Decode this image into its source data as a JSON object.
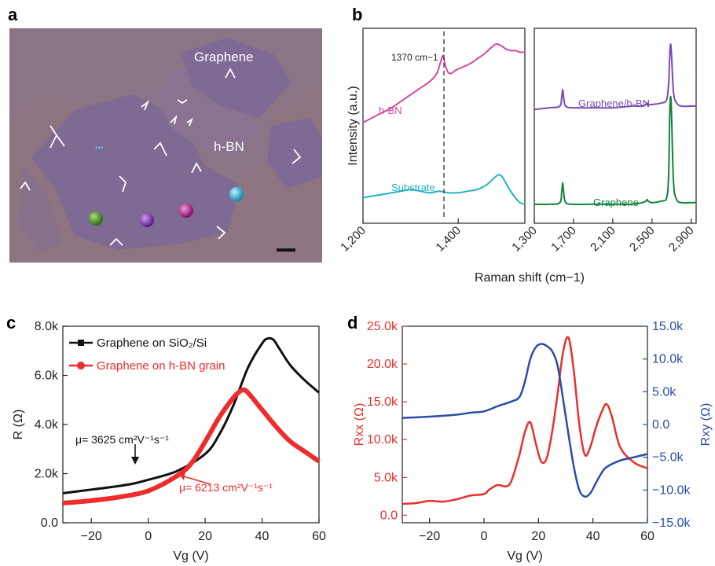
{
  "panels": {
    "a": {
      "letter": "a",
      "label_graphene": "Graphene",
      "label_hbn": "h-BN",
      "colors": {
        "background": "#8e7480",
        "domain": "#7a6a8c",
        "spot_green": "#4a8a2a",
        "spot_purple": "#8a3ab8",
        "spot_magenta": "#c0259a",
        "spot_cyan": "#2ab5d8"
      }
    },
    "b": {
      "letter": "b",
      "ylabel": "Intensity (a.u.)",
      "xlabel": "Raman shift (cm−1)",
      "annotation": "1370 cm−1",
      "left": {
        "ticks": [
          "1,200",
          "1,400"
        ],
        "series": [
          {
            "name": "h-BN",
            "color": "#d9489e"
          },
          {
            "name": "Substrate",
            "color": "#21b3c4"
          }
        ]
      },
      "right": {
        "ticks": [
          "1,300",
          "1,700",
          "2,100",
          "2,500",
          "2,900"
        ],
        "series": [
          {
            "name": "Graphene/h-BN",
            "color": "#7b4ab0"
          },
          {
            "name": "Graphene",
            "color": "#13833d"
          }
        ]
      }
    },
    "c": {
      "letter": "c",
      "mobility_black": "μ= 3625 cm²V⁻¹s⁻¹",
      "mobility_red": "μ= 6213 cm²V⁻¹s⁻¹"
    },
    "d": {
      "letter": "d"
    }
  },
  "chart_data": [
    {
      "panel": "b-left",
      "type": "line",
      "xlabel": "Raman shift (cm−1)",
      "ylabel": "Intensity (a.u.)",
      "xlim": [
        1200,
        1540
      ],
      "xticks": [
        1200,
        1400
      ],
      "vline": 1370,
      "series": [
        {
          "name": "h-BN",
          "color": "#d9489e",
          "x": [
            1200,
            1220,
            1240,
            1260,
            1280,
            1300,
            1320,
            1340,
            1355,
            1362,
            1368,
            1372,
            1378,
            1385,
            1395,
            1410,
            1425,
            1440,
            1455,
            1470,
            1480,
            1490,
            1500,
            1510,
            1520,
            1530,
            1540
          ],
          "y": [
            0.52,
            0.55,
            0.58,
            0.61,
            0.65,
            0.69,
            0.73,
            0.77,
            0.82,
            0.88,
            0.93,
            0.88,
            0.83,
            0.82,
            0.84,
            0.86,
            0.88,
            0.91,
            0.94,
            0.98,
            1.0,
            0.99,
            0.97,
            0.96,
            0.96,
            0.95,
            0.95
          ]
        },
        {
          "name": "Substrate",
          "color": "#21b3c4",
          "x": [
            1200,
            1220,
            1240,
            1260,
            1280,
            1300,
            1320,
            1340,
            1360,
            1380,
            1400,
            1420,
            1440,
            1460,
            1475,
            1485,
            1492,
            1500,
            1510,
            1520,
            1530,
            1540
          ],
          "y": [
            0.06,
            0.07,
            0.08,
            0.09,
            0.1,
            0.11,
            0.1,
            0.09,
            0.1,
            0.09,
            0.09,
            0.1,
            0.11,
            0.14,
            0.18,
            0.2,
            0.19,
            0.15,
            0.1,
            0.06,
            0.03,
            0.02
          ]
        }
      ]
    },
    {
      "panel": "b-right",
      "type": "line",
      "xlim": [
        1300,
        2950
      ],
      "xticks": [
        1300,
        1700,
        2100,
        2500,
        2900
      ],
      "series": [
        {
          "name": "Graphene/h-BN",
          "color": "#7b4ab0",
          "x": [
            1300,
            1450,
            1560,
            1580,
            1590,
            1600,
            1620,
            1700,
            1900,
            2100,
            2300,
            2400,
            2440,
            2450,
            2460,
            2500,
            2600,
            2650,
            2670,
            2680,
            2690,
            2700,
            2720,
            2750,
            2800,
            2900,
            2950
          ],
          "y": [
            0.6,
            0.61,
            0.62,
            0.68,
            0.72,
            0.67,
            0.62,
            0.61,
            0.61,
            0.61,
            0.62,
            0.62,
            0.63,
            0.64,
            0.63,
            0.63,
            0.64,
            0.66,
            0.76,
            0.92,
            1.0,
            0.92,
            0.7,
            0.64,
            0.62,
            0.62,
            0.62
          ]
        },
        {
          "name": "Graphene",
          "color": "#13833d",
          "x": [
            1300,
            1450,
            1560,
            1580,
            1590,
            1600,
            1620,
            1700,
            1900,
            2100,
            2300,
            2400,
            2440,
            2450,
            2460,
            2500,
            2600,
            2650,
            2670,
            2680,
            2690,
            2700,
            2720,
            2750,
            2800,
            2900,
            2950
          ],
          "y": [
            0.02,
            0.02,
            0.03,
            0.1,
            0.15,
            0.09,
            0.03,
            0.02,
            0.02,
            0.02,
            0.02,
            0.03,
            0.04,
            0.05,
            0.04,
            0.03,
            0.04,
            0.06,
            0.2,
            0.55,
            0.68,
            0.55,
            0.15,
            0.05,
            0.03,
            0.03,
            0.03
          ]
        }
      ]
    },
    {
      "panel": "c",
      "type": "line",
      "xlabel": "Vg (V)",
      "ylabel": "R (Ω)",
      "xlim": [
        -30,
        60
      ],
      "ylim": [
        0,
        8000
      ],
      "xticks": [
        -20,
        0,
        20,
        40,
        60
      ],
      "yticks": [
        0,
        2000,
        4000,
        6000,
        8000
      ],
      "yticklabels": [
        "0.0",
        "2.0k",
        "4.0k",
        "6.0k",
        "8.0k"
      ],
      "series": [
        {
          "name": "Graphene on SiO₂/Si",
          "color": "#111111",
          "x": [
            -30,
            -20,
            -10,
            -5,
            0,
            10,
            20,
            25,
            30,
            35,
            40,
            42,
            44,
            46,
            50,
            55,
            60
          ],
          "y": [
            1200,
            1350,
            1500,
            1600,
            1750,
            2100,
            2800,
            3600,
            4800,
            6300,
            7300,
            7500,
            7450,
            7100,
            6400,
            5800,
            5300
          ]
        },
        {
          "name": "Graphene on h-BN grain",
          "color": "#ee2c2c",
          "x": [
            -30,
            -20,
            -10,
            0,
            10,
            15,
            20,
            25,
            30,
            33,
            35,
            40,
            45,
            50,
            55,
            60
          ],
          "y": [
            800,
            900,
            1050,
            1300,
            1900,
            2400,
            3300,
            4300,
            5100,
            5400,
            5300,
            4600,
            3900,
            3300,
            2900,
            2500
          ]
        }
      ]
    },
    {
      "panel": "d",
      "type": "line",
      "xlabel": "Vg (V)",
      "ylabel": "Rxx (Ω)",
      "ylabel_right": "Rxy (Ω)",
      "xlim": [
        -30,
        60
      ],
      "ylim": [
        -1000,
        25000
      ],
      "ylim_right": [
        -15000,
        15000
      ],
      "xticks": [
        -20,
        0,
        20,
        40,
        60
      ],
      "yticks": [
        0,
        5000,
        10000,
        15000,
        20000,
        25000
      ],
      "yticklabels": [
        "0.0",
        "5.0k",
        "10.0k",
        "15.0k",
        "20.0k",
        "25.0k"
      ],
      "yticks_right": [
        -15000,
        -10000,
        -5000,
        0,
        5000,
        10000,
        15000
      ],
      "yticklabels_right": [
        "−15.0k",
        "−10.0k",
        "−5.0k",
        "0.0",
        "5.0k",
        "10.0k",
        "15.0k"
      ],
      "series": [
        {
          "name": "Rxx",
          "axis": "left",
          "color": "#e8302e",
          "x": [
            -30,
            -25,
            -20,
            -15,
            -10,
            -5,
            0,
            2,
            5,
            8,
            10,
            13,
            15,
            17,
            19,
            21,
            23,
            25,
            27,
            29,
            31,
            33,
            35,
            37,
            39,
            41,
            43,
            45,
            47,
            50,
            55,
            60
          ],
          "y": [
            1500,
            1600,
            1900,
            1800,
            2100,
            2600,
            2800,
            3400,
            4000,
            3800,
            4500,
            8000,
            11000,
            12300,
            9500,
            7100,
            7500,
            11000,
            16000,
            21500,
            23500,
            19000,
            12000,
            8000,
            9000,
            11500,
            13500,
            14700,
            13000,
            9000,
            7000,
            6200
          ]
        },
        {
          "name": "Rxy",
          "axis": "right",
          "color": "#2a4da8",
          "x": [
            -30,
            -20,
            -10,
            -5,
            0,
            5,
            10,
            13,
            15,
            17,
            19,
            21,
            23,
            25,
            27,
            29,
            31,
            33,
            35,
            37,
            39,
            41,
            43,
            45,
            50,
            55,
            60
          ],
          "y": [
            1000,
            1200,
            1500,
            1800,
            2000,
            2800,
            3500,
            4200,
            6500,
            10000,
            11800,
            12300,
            12000,
            11200,
            9000,
            4000,
            -1500,
            -6500,
            -10000,
            -11000,
            -10500,
            -9000,
            -7500,
            -6500,
            -5500,
            -5000,
            -4500
          ]
        }
      ]
    }
  ]
}
